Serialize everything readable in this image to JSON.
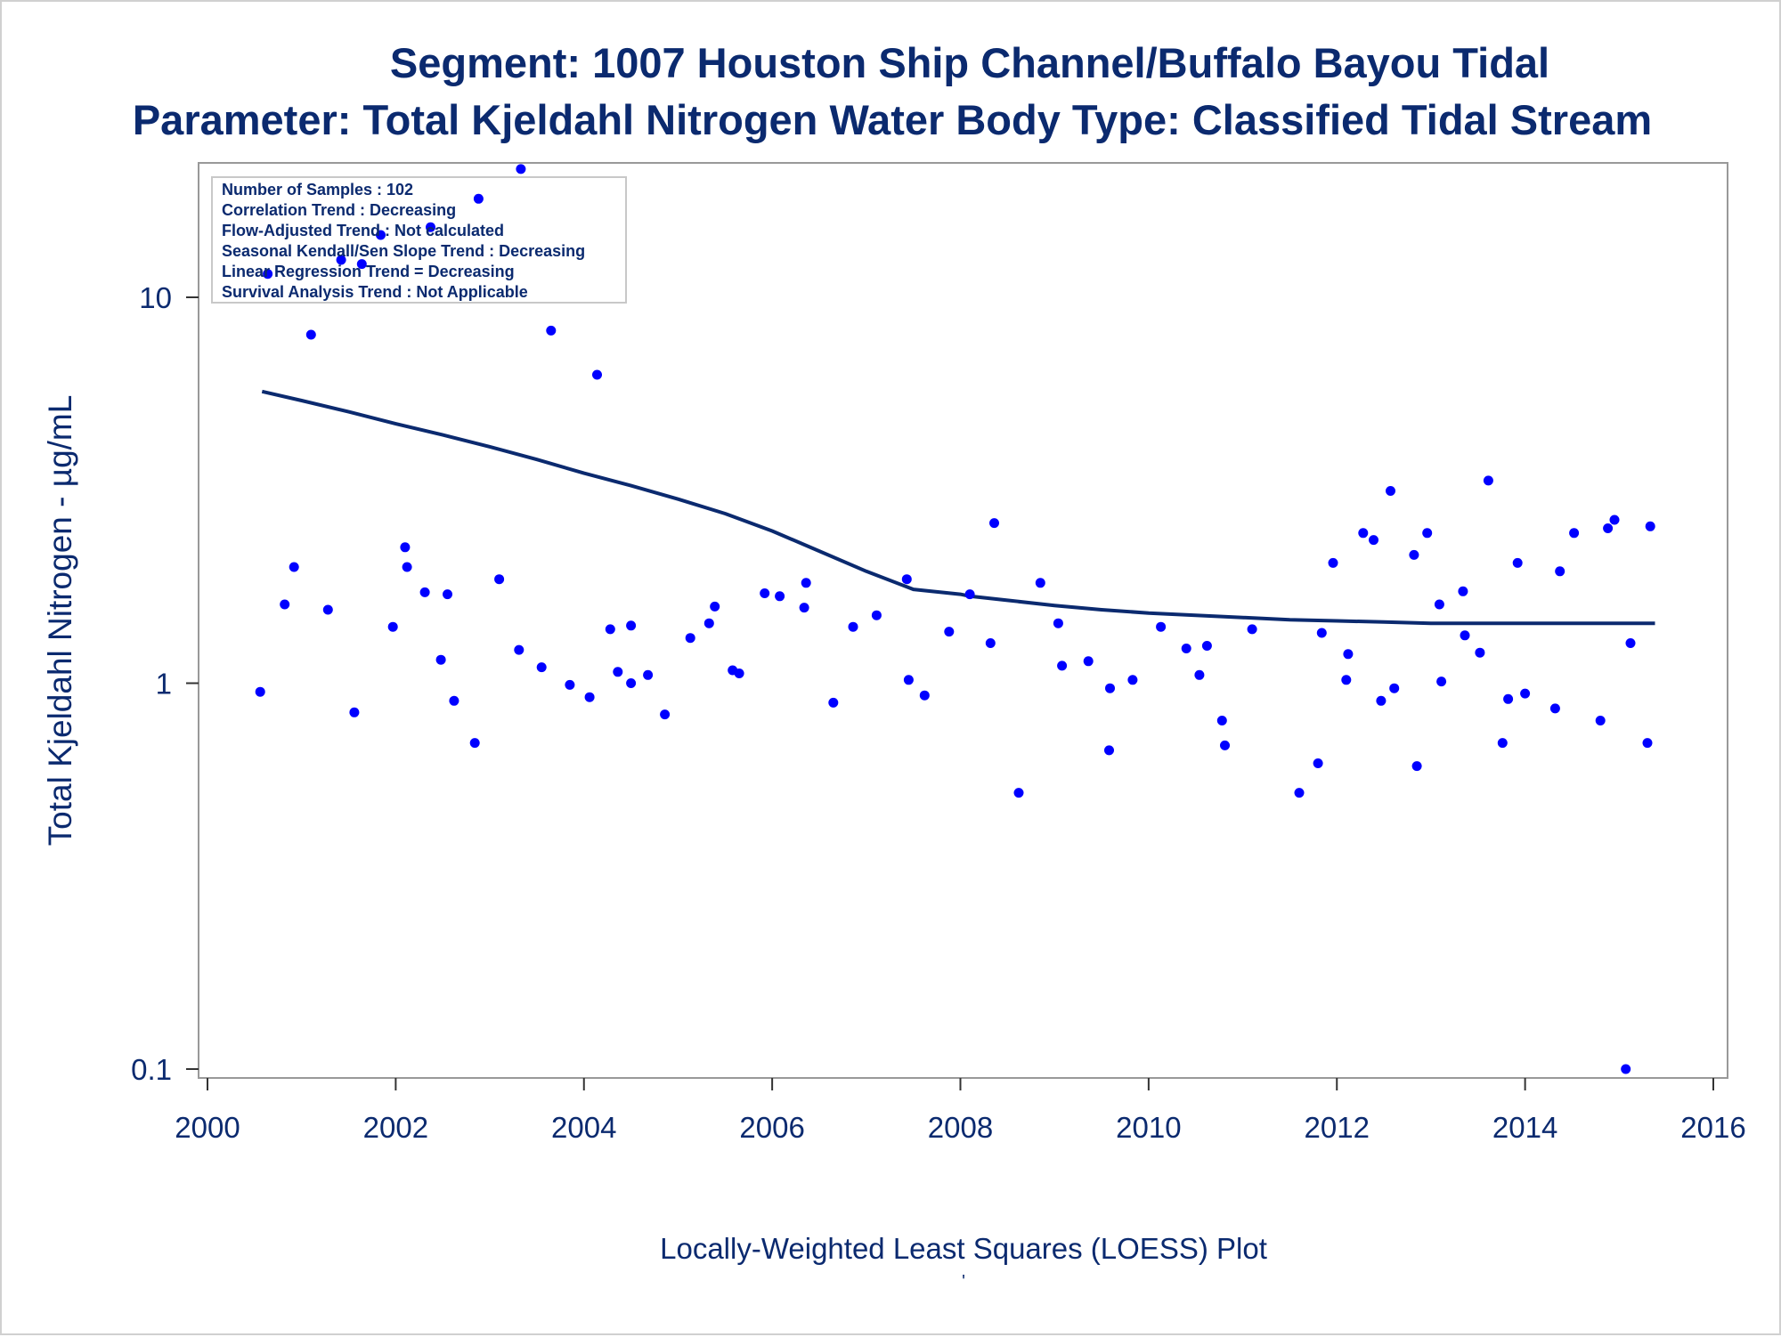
{
  "colors": {
    "text": "#0b2a6f",
    "points": "#0000ff",
    "loess_line": "#0b2a6f",
    "frame": "#999999",
    "legend_border": "#c8c8c8"
  },
  "chart_data": {
    "type": "scatter",
    "title": "Segment: 1007  Houston Ship Channel/Buffalo Bayou Tidal",
    "subtitle": "Parameter: Total Kjeldahl Nitrogen   Water Body Type: Classified Tidal Stream",
    "xlabel": "Locally-Weighted Least Squares (LOESS) Plot",
    "ylabel": "Total Kjeldahl Nitrogen -  µg/mL",
    "footnote": "'",
    "xlim": [
      2000,
      2016
    ],
    "ylim": [
      0.1,
      22
    ],
    "y_scale": "log",
    "grid": false,
    "x_ticks": [
      {
        "value": 2000,
        "label": "2000"
      },
      {
        "value": 2002,
        "label": "2002"
      },
      {
        "value": 2004,
        "label": "2004"
      },
      {
        "value": 2006,
        "label": "2006"
      },
      {
        "value": 2008,
        "label": "2008"
      },
      {
        "value": 2010,
        "label": "2010"
      },
      {
        "value": 2012,
        "label": "2012"
      },
      {
        "value": 2014,
        "label": "2014"
      },
      {
        "value": 2016,
        "label": "2016"
      }
    ],
    "y_ticks": [
      {
        "value": 0.1,
        "label": "0.1"
      },
      {
        "value": 1,
        "label": "1"
      },
      {
        "value": 10,
        "label": "10"
      }
    ],
    "legend_position": "top-left",
    "stats_box": [
      "Number of Samples : 102",
      "Correlation Trend : Decreasing",
      "Flow-Adjusted Trend : Not calculated",
      "Seasonal Kendall/Sen Slope Trend : Decreasing",
      "Linear Regression Trend = Decreasing",
      "Survival Analysis Trend : Not Applicable"
    ],
    "series": [
      {
        "kind": "points",
        "x": [
          2000.56,
          2000.64,
          2000.82,
          2000.92,
          2001.1,
          2001.28,
          2001.42,
          2001.56,
          2001.64,
          2001.84,
          2001.97,
          2002.1,
          2002.12,
          2002.31,
          2002.37,
          2002.48,
          2002.55,
          2002.62,
          2002.84,
          2002.88,
          2003.1,
          2003.31,
          2003.33,
          2003.55,
          2003.65,
          2003.85,
          2004.06,
          2004.14,
          2004.28,
          2004.36,
          2004.5,
          2004.5,
          2004.68,
          2004.86,
          2005.13,
          2005.33,
          2005.39,
          2005.58,
          2005.65,
          2005.92,
          2006.08,
          2006.34,
          2006.36,
          2006.65,
          2006.86,
          2007.11,
          2007.43,
          2007.45,
          2007.62,
          2007.88,
          2008.1,
          2008.32,
          2008.36,
          2008.62,
          2008.85,
          2009.04,
          2009.08,
          2009.36,
          2009.58,
          2009.59,
          2009.83,
          2010.13,
          2010.4,
          2010.54,
          2010.62,
          2010.78,
          2010.81,
          2011.1,
          2011.6,
          2011.8,
          2011.84,
          2011.96,
          2012.1,
          2012.12,
          2012.28,
          2012.39,
          2012.47,
          2012.57,
          2012.61,
          2012.82,
          2012.85,
          2012.96,
          2013.09,
          2013.11,
          2013.34,
          2013.36,
          2013.52,
          2013.61,
          2013.76,
          2013.82,
          2013.92,
          2014.0,
          2014.32,
          2014.37,
          2014.52,
          2014.8,
          2014.88,
          2014.95,
          2015.07,
          2015.12,
          2015.3,
          2015.33
        ],
        "y": [
          0.95,
          11.5,
          1.6,
          2.0,
          8.0,
          1.55,
          12.5,
          0.84,
          12.2,
          14.5,
          1.4,
          2.25,
          2.0,
          1.72,
          15.2,
          1.15,
          1.7,
          0.9,
          0.7,
          18.0,
          1.86,
          1.22,
          21.5,
          1.1,
          8.2,
          0.99,
          0.92,
          6.3,
          1.38,
          1.07,
          1.0,
          1.41,
          1.05,
          0.83,
          1.31,
          1.43,
          1.58,
          1.08,
          1.06,
          1.71,
          1.68,
          1.57,
          1.82,
          0.89,
          1.4,
          1.5,
          1.86,
          1.02,
          0.93,
          1.36,
          1.7,
          1.27,
          2.6,
          0.52,
          1.82,
          1.43,
          1.11,
          1.14,
          0.67,
          0.97,
          1.02,
          1.4,
          1.23,
          1.05,
          1.25,
          0.8,
          0.69,
          1.38,
          0.52,
          0.62,
          1.35,
          2.05,
          1.02,
          1.19,
          2.45,
          2.35,
          0.9,
          3.15,
          0.97,
          2.15,
          0.61,
          2.45,
          1.6,
          1.01,
          1.73,
          1.33,
          1.2,
          3.35,
          0.7,
          0.91,
          2.05,
          0.94,
          0.86,
          1.95,
          2.45,
          0.8,
          2.52,
          2.65,
          0.1,
          1.27,
          0.7,
          2.55
        ]
      },
      {
        "kind": "loess",
        "x": [
          2000.58,
          2001.0,
          2001.5,
          2002.0,
          2002.5,
          2003.0,
          2003.5,
          2004.0,
          2004.5,
          2005.0,
          2005.5,
          2006.0,
          2006.5,
          2007.0,
          2007.5,
          2008.0,
          2008.1,
          2008.5,
          2009.0,
          2009.5,
          2010.0,
          2010.5,
          2011.0,
          2011.5,
          2012.0,
          2012.5,
          2013.0,
          2013.5,
          2014.0,
          2014.5,
          2015.0,
          2015.38
        ],
        "y": [
          5.7,
          5.4,
          5.05,
          4.7,
          4.4,
          4.1,
          3.8,
          3.5,
          3.25,
          3.0,
          2.75,
          2.48,
          2.2,
          1.95,
          1.75,
          1.7,
          1.68,
          1.64,
          1.59,
          1.55,
          1.52,
          1.5,
          1.48,
          1.46,
          1.45,
          1.44,
          1.43,
          1.43,
          1.43,
          1.43,
          1.43,
          1.43
        ]
      }
    ]
  }
}
